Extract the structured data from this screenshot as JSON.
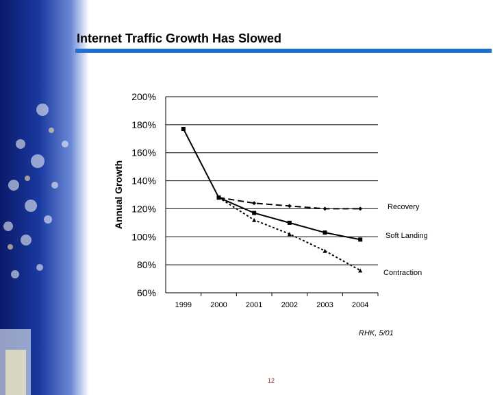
{
  "slide": {
    "title": "Internet Traffic Growth Has Slowed",
    "note": "RHK, 5/01",
    "page_number": "12",
    "accent_color": "#1d6fd6"
  },
  "chart_data": {
    "type": "line",
    "title": "",
    "xlabel": "",
    "ylabel": "Annual Growth",
    "categories": [
      "1999",
      "2000",
      "2001",
      "2002",
      "2003",
      "2004"
    ],
    "y_ticks": [
      "60%",
      "80%",
      "100%",
      "120%",
      "140%",
      "160%",
      "180%",
      "200%"
    ],
    "ylim": [
      60,
      200
    ],
    "grid": true,
    "series": [
      {
        "name": "Recovery",
        "style": "dashed",
        "values": [
          null,
          128,
          124,
          122,
          120,
          120
        ]
      },
      {
        "name": "Soft Landing",
        "style": "solid",
        "values": [
          177,
          128,
          117,
          110,
          103,
          98
        ]
      },
      {
        "name": "Contraction",
        "style": "dotted",
        "values": [
          null,
          128,
          112,
          102,
          90,
          76
        ]
      }
    ]
  }
}
